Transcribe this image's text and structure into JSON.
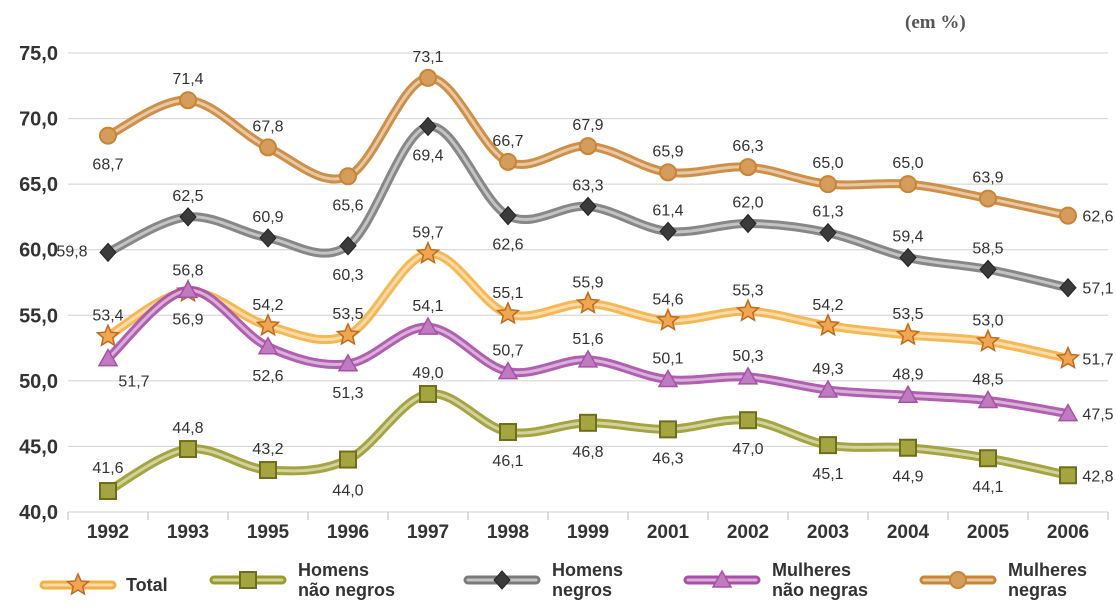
{
  "unit_label": "(em %)",
  "colors": {
    "total": "#f5b041",
    "homens_nao_negros": "#9a9a2c",
    "homens_negros": "#7a7a7a",
    "mulheres_nao_negras": "#a84fa8",
    "mulheres_negras": "#c98434"
  },
  "chart_data": {
    "type": "line",
    "categories": [
      "1992",
      "1993",
      "1995",
      "1996",
      "1997",
      "1998",
      "1999",
      "2001",
      "2002",
      "2003",
      "2004",
      "2005",
      "2006"
    ],
    "ylim": [
      40,
      75
    ],
    "yticks": [
      "40,0",
      "45,0",
      "50,0",
      "55,0",
      "60,0",
      "65,0",
      "70,0",
      "75,0"
    ],
    "grid": true,
    "legend_position": "bottom",
    "series": [
      {
        "key": "mulheres_negras",
        "name": "Mulheres negras",
        "marker": "circle",
        "values": [
          68.7,
          71.4,
          67.8,
          65.6,
          73.1,
          66.7,
          67.9,
          65.9,
          66.3,
          65.0,
          65.0,
          63.9,
          62.6
        ],
        "labels": [
          "68,7",
          "71,4",
          "67,8",
          "65,6",
          "73,1",
          "66,7",
          "67,9",
          "65,9",
          "66,3",
          "65,0",
          "65,0",
          "63,9",
          "62,6"
        ]
      },
      {
        "key": "homens_negros",
        "name": "Homens negros",
        "marker": "diamond",
        "values": [
          59.8,
          62.5,
          60.9,
          60.3,
          69.4,
          62.6,
          63.3,
          61.4,
          62.0,
          61.3,
          59.4,
          58.5,
          57.1
        ],
        "labels": [
          "59,8",
          "62,5",
          "60,9",
          "60,3",
          "69,4",
          "62,6",
          "63,3",
          "61,4",
          "62,0",
          "61,3",
          "59,4",
          "58,5",
          "57,1"
        ]
      },
      {
        "key": "total",
        "name": "Total",
        "marker": "star",
        "values": [
          53.4,
          56.8,
          54.2,
          53.5,
          59.7,
          55.1,
          55.9,
          54.6,
          55.3,
          54.2,
          53.5,
          53.0,
          51.7
        ],
        "labels": [
          "53,4",
          "56,8",
          "54,2",
          "53,5",
          "59,7",
          "55,1",
          "55,9",
          "54,6",
          "55,3",
          "54,2",
          "53,5",
          "53,0",
          "51,7"
        ]
      },
      {
        "key": "mulheres_nao_negras",
        "name": "Mulheres não negras",
        "marker": "triangle",
        "values": [
          51.7,
          56.9,
          52.6,
          51.3,
          54.1,
          50.7,
          51.6,
          50.1,
          50.3,
          49.3,
          48.9,
          48.5,
          47.5
        ],
        "labels": [
          "51,7",
          "56,9",
          "52,6",
          "51,3",
          "54,1",
          "50,7",
          "51,6",
          "50,1",
          "50,3",
          "49,3",
          "48,9",
          "48,5",
          "47,5"
        ]
      },
      {
        "key": "homens_nao_negros",
        "name": "Homens não negros",
        "marker": "square",
        "values": [
          41.6,
          44.8,
          43.2,
          44.0,
          49.0,
          46.1,
          46.8,
          46.3,
          47.0,
          45.1,
          44.9,
          44.1,
          42.8
        ],
        "labels": [
          "41,6",
          "44,8",
          "43,2",
          "44,0",
          "49,0",
          "46,1",
          "46,8",
          "46,3",
          "47,0",
          "45,1",
          "44,9",
          "44,1",
          "42,8"
        ]
      }
    ]
  },
  "legend": [
    {
      "key": "total",
      "label": "Total"
    },
    {
      "key": "homens_nao_negros",
      "label": "Homens\nnão negros"
    },
    {
      "key": "homens_negros",
      "label": "Homens\nnegros"
    },
    {
      "key": "mulheres_nao_negras",
      "label": "Mulheres\nnão negras"
    },
    {
      "key": "mulheres_negras",
      "label": "Mulheres\nnegras"
    }
  ]
}
